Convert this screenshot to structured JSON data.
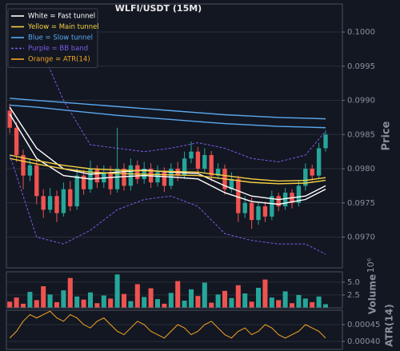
{
  "chart_data": [
    {
      "type": "candlestick",
      "title": "WLFI/USDT (15M)",
      "ylabel": "Price",
      "open": [
        0.09885,
        0.0986,
        0.0982,
        0.0979,
        0.09805,
        0.0976,
        0.0974,
        0.0976,
        0.09735,
        0.0977,
        0.09745,
        0.0979,
        0.0977,
        0.098,
        0.0978,
        0.09795,
        0.0977,
        0.098,
        0.09775,
        0.09805,
        0.09785,
        0.098,
        0.0978,
        0.09795,
        0.09775,
        0.098,
        0.0979,
        0.09815,
        0.09825,
        0.098,
        0.0982,
        0.0979,
        0.098,
        0.0977,
        0.09785,
        0.09735,
        0.0975,
        0.09725,
        0.09745,
        0.0973,
        0.0976,
        0.09745,
        0.09765,
        0.0975,
        0.09775,
        0.098,
        0.0979,
        0.0983
      ],
      "high": [
        0.09895,
        0.09868,
        0.09828,
        0.09815,
        0.09812,
        0.0977,
        0.09772,
        0.09768,
        0.0978,
        0.09782,
        0.098,
        0.09798,
        0.09812,
        0.09805,
        0.09805,
        0.09804,
        0.0986,
        0.09808,
        0.09815,
        0.09812,
        0.0981,
        0.09808,
        0.09805,
        0.09802,
        0.09808,
        0.0981,
        0.09825,
        0.0984,
        0.09832,
        0.0983,
        0.09826,
        0.09808,
        0.09806,
        0.09795,
        0.0979,
        0.0976,
        0.09758,
        0.09752,
        0.09752,
        0.09768,
        0.09765,
        0.09772,
        0.0977,
        0.09782,
        0.09808,
        0.09806,
        0.09838,
        0.09856
      ],
      "low": [
        0.09852,
        0.0981,
        0.0977,
        0.09782,
        0.09748,
        0.09728,
        0.09735,
        0.09722,
        0.0973,
        0.09738,
        0.0974,
        0.09762,
        0.09765,
        0.09772,
        0.09772,
        0.09762,
        0.09765,
        0.09768,
        0.09768,
        0.09778,
        0.09778,
        0.09772,
        0.09774,
        0.09766,
        0.0977,
        0.09782,
        0.09785,
        0.09808,
        0.09792,
        0.09795,
        0.09782,
        0.09785,
        0.09762,
        0.09765,
        0.09722,
        0.09728,
        0.09712,
        0.09718,
        0.09722,
        0.09725,
        0.09738,
        0.0974,
        0.09742,
        0.09745,
        0.09768,
        0.09782,
        0.09785,
        0.09825
      ],
      "close": [
        0.0986,
        0.0982,
        0.0979,
        0.09805,
        0.0976,
        0.0974,
        0.0976,
        0.09735,
        0.0977,
        0.09745,
        0.0979,
        0.0977,
        0.098,
        0.0978,
        0.09795,
        0.0977,
        0.098,
        0.09775,
        0.09805,
        0.09785,
        0.098,
        0.0978,
        0.09795,
        0.09775,
        0.098,
        0.0979,
        0.09815,
        0.09825,
        0.098,
        0.0982,
        0.0979,
        0.098,
        0.0977,
        0.09785,
        0.09735,
        0.0975,
        0.09725,
        0.09745,
        0.0973,
        0.0976,
        0.09745,
        0.09765,
        0.0975,
        0.09775,
        0.098,
        0.0979,
        0.0983,
        0.0985
      ],
      "up_color": "#26a69a",
      "down_color": "#ef5350",
      "ylim": [
        0.09655,
        0.10041
      ],
      "yticks": [
        {
          "value": 0.097,
          "label": "0.0970"
        },
        0.0975,
        {
          "value": 0.098,
          "label": "0.0980"
        },
        0.0985,
        {
          "value": 0.099,
          "label": "0.0990"
        },
        0.0995,
        {
          "value": 0.1,
          "label": "0.1000"
        }
      ],
      "grid": true,
      "legend": "upper left",
      "series": [
        {
          "name": "White = Fast tunnel",
          "color": "#ffffff",
          "dash": false,
          "x": [
            0,
            4,
            8,
            12,
            16,
            20,
            24,
            28,
            32,
            36,
            40,
            44,
            47
          ],
          "upper": [
            0.0989,
            0.0983,
            0.098,
            0.09792,
            0.09795,
            0.09798,
            0.09795,
            0.09793,
            0.09775,
            0.0976,
            0.09755,
            0.0976,
            0.09775
          ],
          "lower": [
            0.0988,
            0.09815,
            0.0979,
            0.09785,
            0.09788,
            0.0979,
            0.09788,
            0.09785,
            0.09765,
            0.09752,
            0.09748,
            0.09755,
            0.0977
          ]
        },
        {
          "name": "Yellow = Main tunnel",
          "color": "#f5d142",
          "dash": false,
          "x": [
            0,
            4,
            8,
            12,
            16,
            20,
            24,
            28,
            32,
            36,
            40,
            44,
            47
          ],
          "upper": [
            0.0982,
            0.09812,
            0.09805,
            0.098,
            0.09798,
            0.09797,
            0.09796,
            0.09795,
            0.0979,
            0.09785,
            0.09782,
            0.09783,
            0.09787
          ],
          "lower": [
            0.09815,
            0.09807,
            0.098,
            0.09795,
            0.09793,
            0.09792,
            0.09791,
            0.0979,
            0.09785,
            0.0978,
            0.09778,
            0.09779,
            0.09783
          ]
        },
        {
          "name": "Blue = Slow tunnel",
          "color": "#5aa9f0",
          "dash": false,
          "x": [
            0,
            4,
            8,
            12,
            16,
            20,
            24,
            28,
            32,
            36,
            40,
            44,
            47
          ],
          "upper": [
            0.09903,
            0.099,
            0.09897,
            0.09894,
            0.09891,
            0.09888,
            0.09885,
            0.09882,
            0.09879,
            0.09877,
            0.09875,
            0.09874,
            0.09873
          ],
          "lower": [
            0.09893,
            0.0989,
            0.09886,
            0.09882,
            0.09878,
            0.09875,
            0.09872,
            0.09869,
            0.09866,
            0.09864,
            0.09862,
            0.09861,
            0.0986
          ]
        },
        {
          "name": "Purple = BB band",
          "color": "#7b5ce6",
          "dash": true,
          "x": [
            0,
            4,
            8,
            12,
            16,
            20,
            24,
            28,
            32,
            36,
            40,
            44,
            47
          ],
          "upper": [
            0.1001,
            0.0999,
            0.099,
            0.09835,
            0.0983,
            0.09825,
            0.0983,
            0.09838,
            0.0983,
            0.09815,
            0.0981,
            0.0982,
            0.09855
          ],
          "lower": [
            0.0982,
            0.097,
            0.0969,
            0.0971,
            0.0974,
            0.09755,
            0.0976,
            0.09745,
            0.09705,
            0.09695,
            0.0969,
            0.0969,
            0.09675
          ]
        }
      ]
    },
    {
      "type": "bar",
      "ylabel": "Volume",
      "y_exponent_label": "10⁶",
      "values": [
        1.2,
        2.0,
        0.8,
        3.1,
        1.5,
        4.2,
        2.6,
        1.1,
        3.4,
        5.8,
        2.2,
        1.6,
        3.0,
        0.9,
        2.4,
        1.8,
        6.5,
        2.7,
        1.3,
        4.6,
        2.1,
        3.8,
        1.7,
        0.8,
        2.9,
        5.2,
        1.4,
        3.6,
        2.3,
        4.9,
        1.0,
        2.6,
        3.3,
        1.9,
        4.4,
        2.8,
        1.2,
        3.9,
        5.5,
        2.0,
        1.5,
        3.2,
        0.9,
        2.5,
        1.8,
        1.1,
        2.2,
        0.7
      ],
      "ylim": [
        0,
        7.0
      ],
      "yticks": [
        2.5,
        {
          "value": 5,
          "label": "5.0"
        }
      ],
      "grid": true
    },
    {
      "type": "line",
      "name": "Orange = ATR(14)",
      "ylabel": "ATR(14)",
      "color": "#f5a623",
      "values": [
        0.00041,
        0.00043,
        0.00046,
        0.00048,
        0.00047,
        0.00048,
        0.00049,
        0.00047,
        0.00046,
        0.00048,
        0.00047,
        0.00045,
        0.00044,
        0.00046,
        0.00047,
        0.00045,
        0.00043,
        0.00042,
        0.00044,
        0.00046,
        0.00045,
        0.00043,
        0.00042,
        0.00041,
        0.00043,
        0.00045,
        0.00044,
        0.00042,
        0.00043,
        0.00045,
        0.00046,
        0.00044,
        0.00042,
        0.00041,
        0.00043,
        0.00044,
        0.00042,
        0.00043,
        0.00045,
        0.00044,
        0.00042,
        0.00041,
        0.00042,
        0.00043,
        0.00045,
        0.00044,
        0.00043,
        0.00041
      ],
      "ylim": [
        0.000376,
        0.000493
      ],
      "yticks": [
        {
          "value": 0.0004,
          "label": "0.00040"
        },
        0.00045
      ],
      "grid": true
    }
  ]
}
